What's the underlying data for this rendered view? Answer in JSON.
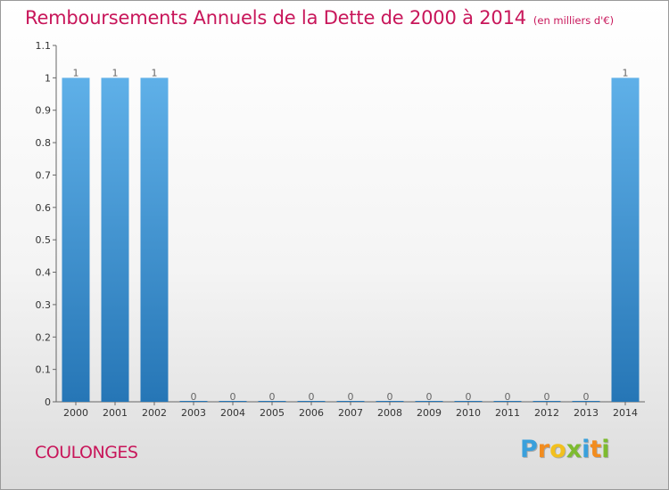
{
  "title": "Remboursements Annuels de la Dette de 2000 à 2014",
  "title_unit": "(en milliers d'€)",
  "place": "COULONGES",
  "brand": {
    "letters": [
      "P",
      "r",
      "o",
      "x",
      "i",
      "t",
      "i"
    ],
    "colors": [
      "#3aa0dc",
      "#f28c1e",
      "#f2c01e",
      "#7dbb2f",
      "#3aa0dc",
      "#f28c1e",
      "#7dbb2f"
    ]
  },
  "colors": {
    "title": "#c8165a",
    "bar_top": "#5fb0e8",
    "bar_bottom": "#2676b6"
  },
  "chart_data": {
    "type": "bar",
    "categories": [
      "2000",
      "2001",
      "2002",
      "2003",
      "2004",
      "2005",
      "2006",
      "2007",
      "2008",
      "2009",
      "2010",
      "2011",
      "2012",
      "2013",
      "2014"
    ],
    "values": [
      1,
      1,
      1,
      0,
      0,
      0,
      0,
      0,
      0,
      0,
      0,
      0,
      0,
      0,
      1
    ],
    "data_labels": [
      "1",
      "1",
      "1",
      "0",
      "0",
      "0",
      "0",
      "0",
      "0",
      "0",
      "0",
      "0",
      "0",
      "0",
      "1"
    ],
    "yticks": [
      "0",
      "0.1",
      "0.2",
      "0.3",
      "0.4",
      "0.5",
      "0.6",
      "0.7",
      "0.8",
      "0.9",
      "1",
      "1.1"
    ],
    "ylim": [
      0,
      1.1
    ],
    "grid": false,
    "legend": false
  }
}
